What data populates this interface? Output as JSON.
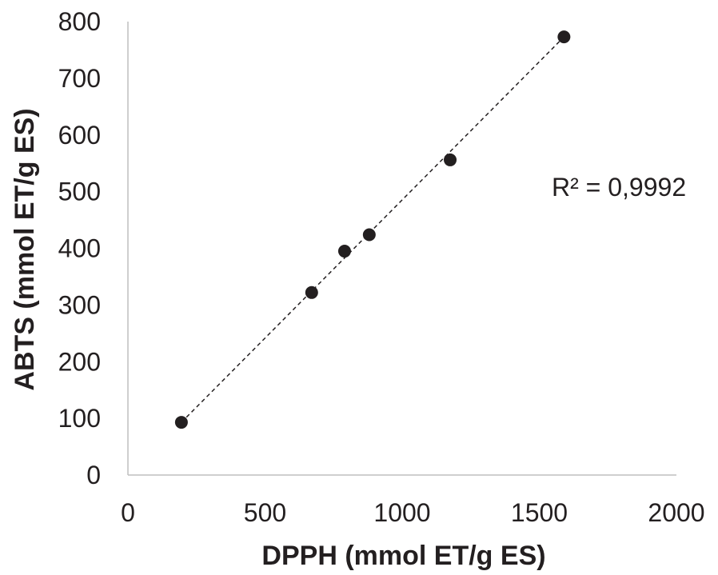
{
  "chart_data": {
    "type": "scatter",
    "title": "",
    "xlabel": "DPPH (mmol ET/g ES)",
    "ylabel": "ABTS (mmol ET/g ES)",
    "xlim": [
      0,
      2000
    ],
    "ylim": [
      0,
      800
    ],
    "xticks": [
      "0",
      "500",
      "1000",
      "1500",
      "2000"
    ],
    "yticks": [
      "0",
      "100",
      "200",
      "300",
      "400",
      "500",
      "600",
      "700",
      "800"
    ],
    "grid": false,
    "legend": "none",
    "series": [
      {
        "x": [
          195,
          670,
          790,
          880,
          1175,
          1590
        ],
        "y": [
          93,
          322,
          395,
          424,
          556,
          773
        ],
        "marker_color": "#231f20"
      }
    ],
    "trendline": {
      "style": "dashed",
      "color": "#231f20",
      "x": [
        195,
        1590
      ],
      "y": [
        93,
        773
      ]
    },
    "annotations": [
      "R² = 0,9992"
    ]
  }
}
